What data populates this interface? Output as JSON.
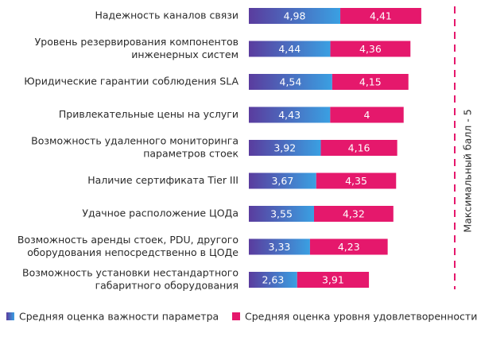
{
  "chart_data": {
    "type": "stacked-bar-horizontal",
    "categories": [
      [
        "Надежность каналов связи"
      ],
      [
        "Уровень резервирования компонентов",
        "инженерных систем"
      ],
      [
        "Юридические гарантии соблюдения SLA"
      ],
      [
        "Привлекательные цены на услуги"
      ],
      [
        "Возможность удаленного мониторинга",
        "параметров стоек"
      ],
      [
        "Наличие сертификата Tier III"
      ],
      [
        "Удачное расположение ЦОДа"
      ],
      [
        "Возможность аренды стоек, PDU, другого",
        "оборудования непосредственно в ЦОДе"
      ],
      [
        "Возможность установки нестандартного",
        "габаритного оборудования"
      ]
    ],
    "series": [
      {
        "name": "Средняя оценка важности параметра",
        "color": "#4f72c9",
        "values": [
          4.98,
          4.44,
          4.54,
          4.43,
          3.92,
          3.67,
          3.55,
          3.33,
          2.63
        ],
        "value_labels": [
          "4,98",
          "4,44",
          "4,54",
          "4,43",
          "3,92",
          "3,67",
          "3,55",
          "3,33",
          "2,63"
        ]
      },
      {
        "name": "Средняя оценка уровня удовлетворенности",
        "color": "#e5186c",
        "values": [
          4.41,
          4.36,
          4.15,
          4,
          4.16,
          4.35,
          4.32,
          4.23,
          3.91
        ],
        "value_labels": [
          "4,41",
          "4,36",
          "4,15",
          "4",
          "4,16",
          "4,35",
          "4,32",
          "4,23",
          "3,91"
        ]
      }
    ],
    "annotation": "Максимальный балл - 5",
    "annotation_color": "#e5186c",
    "legend": "bottom"
  }
}
